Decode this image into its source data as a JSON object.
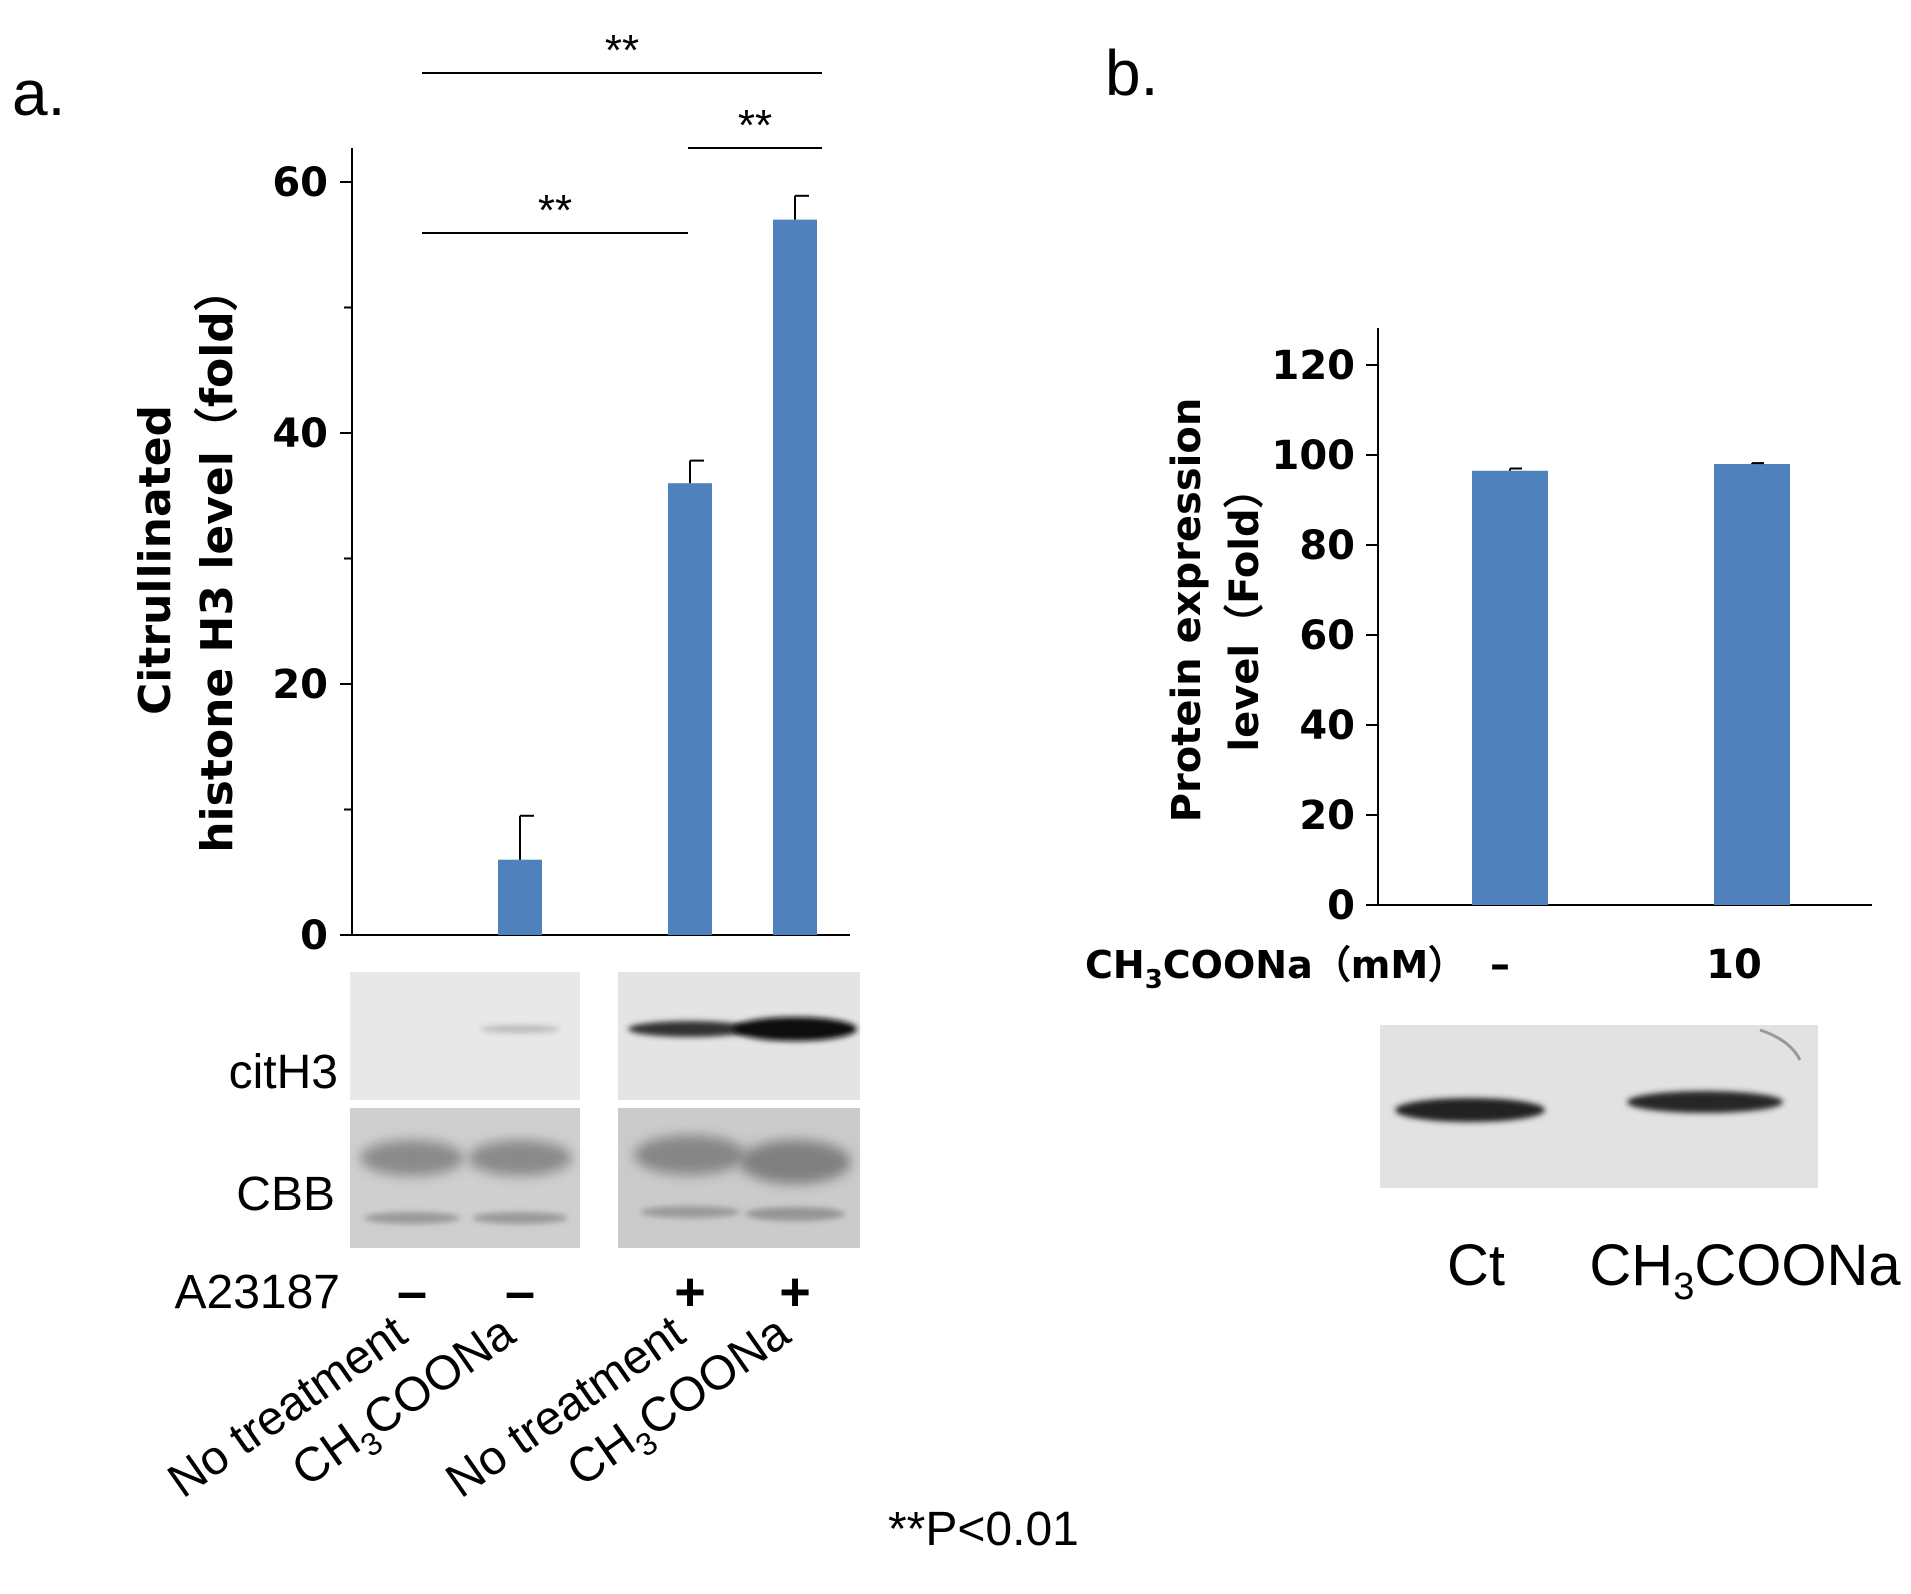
{
  "colors": {
    "bar": "#4f81bd",
    "axis": "#000000",
    "blot_bg": "#e4e4e4",
    "band": "#1a1a1a"
  },
  "significance_note": "**P<0.01",
  "chart_data": [
    {
      "panel_label": "a.",
      "type": "bar",
      "categories": [
        "No treatment",
        "CH3COONa",
        "No treatment",
        "CH3COONa"
      ],
      "category_labels": [
        {
          "main": "No treatment",
          "sub": ""
        },
        {
          "main": "CH",
          "sub": "3",
          "rest": "COONa"
        },
        {
          "main": "No treatment",
          "sub": ""
        },
        {
          "main": "CH",
          "sub": "3",
          "rest": "COONa"
        }
      ],
      "values": [
        0,
        6,
        36,
        57
      ],
      "errors": [
        0,
        3.5,
        1.8,
        1.9
      ],
      "ylabel_lines": [
        "Citrullinated",
        "histone H3 level（fold）"
      ],
      "yticks": [
        "0",
        "20",
        "40",
        "60"
      ],
      "ylim": [
        0,
        64
      ],
      "significance": [
        {
          "from": 0,
          "to": 3,
          "label": "**"
        },
        {
          "from": 2,
          "to": 3,
          "label": "**"
        },
        {
          "from": 0,
          "to": 2,
          "label": "**"
        }
      ],
      "blot_labels": [
        "citH3",
        "CBB"
      ],
      "treatment_label": "A23187",
      "treatment_signs": [
        "–",
        "–",
        "+",
        "+"
      ]
    },
    {
      "panel_label": "b.",
      "type": "bar",
      "categories": [
        "–",
        "10"
      ],
      "values": [
        96.5,
        98
      ],
      "errors": [
        0.5,
        0.2
      ],
      "ylabel_lines": [
        "Protein expression",
        "level（Fold）"
      ],
      "yticks": [
        "0",
        "20",
        "40",
        "60",
        "80",
        "100",
        "120"
      ],
      "ylim": [
        0,
        128
      ],
      "xlabel": {
        "main": "CH",
        "sub": "3",
        "rest": "COONa（mM）"
      },
      "blot_lane_labels": [
        {
          "main": "Ct",
          "sub": ""
        },
        {
          "main": "CH",
          "sub": "3",
          "rest": "COONa"
        }
      ]
    }
  ]
}
